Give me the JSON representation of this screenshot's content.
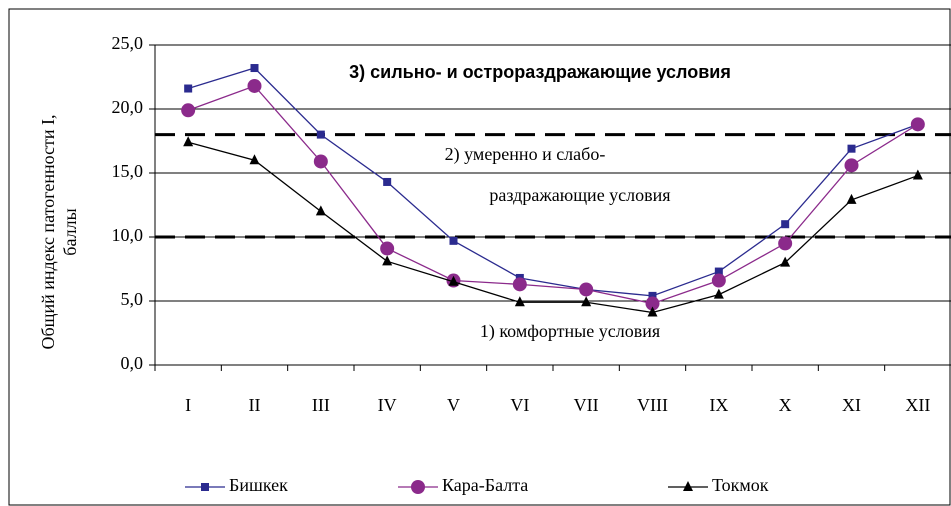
{
  "chart_data": {
    "type": "line",
    "y_label": [
      "Общий индекс патогенности I,",
      "баллы"
    ],
    "categories": [
      "I",
      "II",
      "III",
      "IV",
      "V",
      "VI",
      "VII",
      "VIII",
      "IX",
      "X",
      "XI",
      "XII"
    ],
    "series": [
      {
        "name": "Бишкек",
        "color": "#2b2b8f",
        "marker": "square",
        "values": [
          21.6,
          23.2,
          18.0,
          14.3,
          9.7,
          6.8,
          5.9,
          5.4,
          7.3,
          11.0,
          16.9,
          18.8
        ]
      },
      {
        "name": "Кара-Балта",
        "color": "#8b2a8b",
        "marker": "circle",
        "values": [
          19.9,
          21.8,
          15.9,
          9.1,
          6.6,
          6.3,
          5.9,
          4.8,
          6.6,
          9.5,
          15.6,
          18.8
        ]
      },
      {
        "name": "Токмок",
        "color": "#000000",
        "marker": "triangle",
        "values": [
          17.4,
          16.0,
          12.0,
          8.1,
          6.5,
          4.9,
          4.9,
          4.1,
          5.5,
          8.0,
          12.9,
          14.8
        ]
      }
    ],
    "ylim": [
      0,
      25
    ],
    "yticks": [
      {
        "value": 0,
        "label": "0,0"
      },
      {
        "value": 5,
        "label": "5,0"
      },
      {
        "value": 10,
        "label": "10,0"
      },
      {
        "value": 15,
        "label": "15,0"
      },
      {
        "value": 20,
        "label": "20,0"
      },
      {
        "value": 25,
        "label": "25,0"
      }
    ],
    "grid": true,
    "thresholds": [
      18,
      10
    ],
    "annotations": [
      "3) сильно- и острораздражающие условия",
      "2) умеренно и слабо-",
      "раздражающие условия",
      "1) комфортные условия"
    ],
    "legend": "bottom"
  }
}
